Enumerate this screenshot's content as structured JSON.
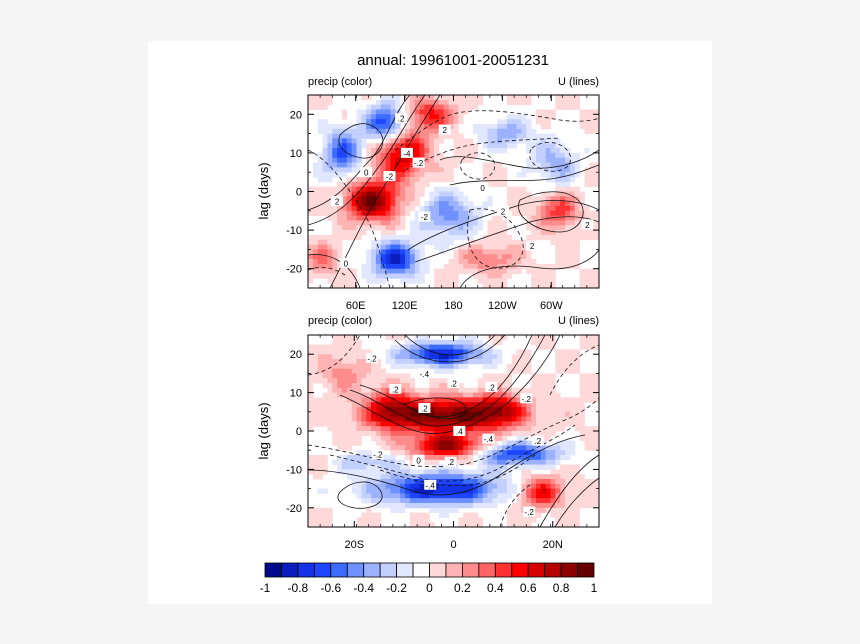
{
  "chart_data": {
    "title": "annual: 19961001-20051231",
    "colorbar": {
      "tick_labels": [
        "-1",
        "-0.8",
        "-0.6",
        "-0.4",
        "-0.2",
        "0",
        "0.2",
        "0.4",
        "0.6",
        "0.8",
        "1"
      ],
      "colors": [
        "#000a8c",
        "#0a1ebf",
        "#1432e6",
        "#1e46ff",
        "#3c6bff",
        "#6e91ff",
        "#9cb2ff",
        "#c3d0ff",
        "#e1e7ff",
        "#ffffff",
        "#ffd9d9",
        "#ffb3b3",
        "#ff8c8c",
        "#ff6464",
        "#ff3232",
        "#ff0000",
        "#d70000",
        "#b30000",
        "#8c0000",
        "#640000"
      ]
    },
    "panels": [
      {
        "type": "heatmap",
        "left_label": "precip (color)",
        "right_label": "U (lines)",
        "ylabel": "lag (days)",
        "x_ticks": [
          "60E",
          "120E",
          "180",
          "120W",
          "60W"
        ],
        "y_ticks": [
          "20",
          "10",
          "0",
          "-10",
          "-20"
        ],
        "ylim": [
          -25,
          25
        ],
        "contour_labels": [
          "2",
          "0",
          "-2",
          "-4",
          "2",
          ".2",
          "-.2",
          "0",
          "2",
          "2",
          "2",
          "-2",
          "0"
        ],
        "blobs": [
          {
            "x": 0.22,
            "y": 0.55,
            "rx": 0.09,
            "ry": 0.1,
            "v": 0.9
          },
          {
            "x": 0.32,
            "y": 0.3,
            "rx": 0.09,
            "ry": 0.14,
            "v": 0.7
          },
          {
            "x": 0.42,
            "y": 0.1,
            "rx": 0.08,
            "ry": 0.08,
            "v": 0.5
          },
          {
            "x": 0.27,
            "y": 0.15,
            "rx": 0.07,
            "ry": 0.1,
            "v": -0.8
          },
          {
            "x": 0.3,
            "y": 0.85,
            "rx": 0.08,
            "ry": 0.09,
            "v": -0.8
          },
          {
            "x": 0.12,
            "y": 0.3,
            "rx": 0.07,
            "ry": 0.12,
            "v": -0.6
          },
          {
            "x": 0.48,
            "y": 0.62,
            "rx": 0.1,
            "ry": 0.12,
            "v": -0.45
          },
          {
            "x": 0.68,
            "y": 0.2,
            "rx": 0.09,
            "ry": 0.08,
            "v": -0.35
          },
          {
            "x": 0.85,
            "y": 0.35,
            "rx": 0.08,
            "ry": 0.12,
            "v": -0.35
          },
          {
            "x": 0.86,
            "y": 0.6,
            "rx": 0.07,
            "ry": 0.09,
            "v": 0.45
          },
          {
            "x": 0.62,
            "y": 0.85,
            "rx": 0.1,
            "ry": 0.07,
            "v": 0.3
          },
          {
            "x": 0.05,
            "y": 0.85,
            "rx": 0.06,
            "ry": 0.08,
            "v": 0.3
          }
        ]
      },
      {
        "type": "heatmap",
        "left_label": "precip (color)",
        "right_label": "U (lines)",
        "ylabel": "lag (days)",
        "x_ticks": [
          "20S",
          "0",
          "20N"
        ],
        "y_ticks": [
          "20",
          "10",
          "0",
          "-10",
          "-20"
        ],
        "ylim": [
          -25,
          25
        ],
        "contour_labels": [
          "-.2",
          ".2",
          "-.4",
          ".2",
          ".2",
          "-.2",
          ".2",
          ".4",
          "-.4",
          ".2",
          "-.2",
          ".2",
          "0",
          "-.4",
          "-.2"
        ],
        "blobs": [
          {
            "x": 0.48,
            "y": 0.42,
            "rx": 0.22,
            "ry": 0.09,
            "v": 0.95
          },
          {
            "x": 0.48,
            "y": 0.58,
            "rx": 0.12,
            "ry": 0.06,
            "v": 0.8
          },
          {
            "x": 0.28,
            "y": 0.38,
            "rx": 0.08,
            "ry": 0.1,
            "v": 0.5
          },
          {
            "x": 0.66,
            "y": 0.38,
            "rx": 0.08,
            "ry": 0.08,
            "v": 0.45
          },
          {
            "x": 0.46,
            "y": 0.1,
            "rx": 0.14,
            "ry": 0.06,
            "v": -0.8
          },
          {
            "x": 0.45,
            "y": 0.8,
            "rx": 0.22,
            "ry": 0.08,
            "v": -0.85
          },
          {
            "x": 0.72,
            "y": 0.62,
            "rx": 0.14,
            "ry": 0.06,
            "v": -0.7
          },
          {
            "x": 0.2,
            "y": 0.66,
            "rx": 0.1,
            "ry": 0.05,
            "v": -0.3
          },
          {
            "x": 0.8,
            "y": 0.82,
            "rx": 0.08,
            "ry": 0.08,
            "v": 0.6
          },
          {
            "x": 0.12,
            "y": 0.2,
            "rx": 0.08,
            "ry": 0.1,
            "v": 0.25
          }
        ]
      }
    ]
  }
}
